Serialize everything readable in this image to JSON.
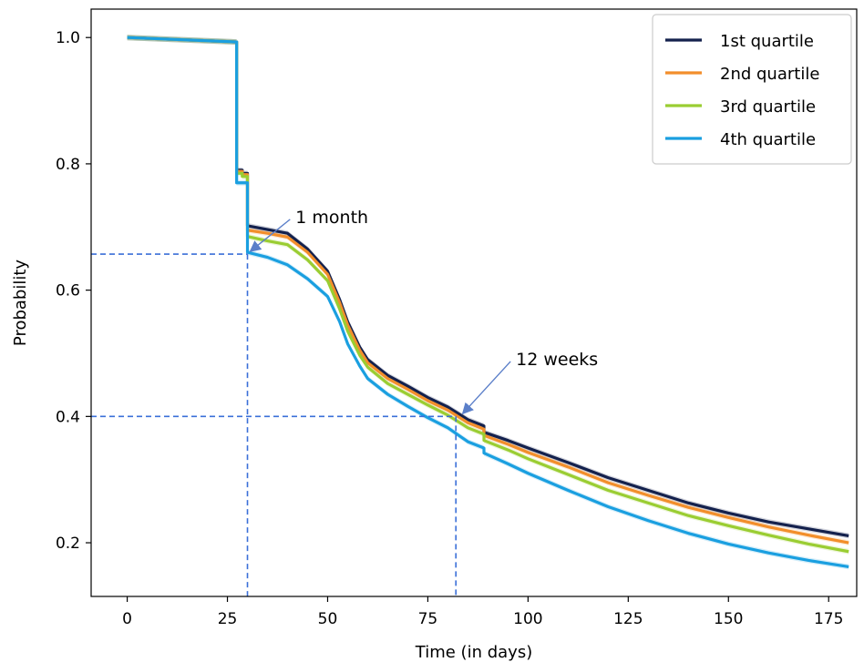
{
  "chart_data": {
    "type": "line",
    "xlabel": "Time (in days)",
    "ylabel": "Probability",
    "xlim": [
      -9,
      182
    ],
    "ylim": [
      0.115,
      1.045
    ],
    "xticks": [
      0,
      25,
      50,
      75,
      100,
      125,
      150,
      175
    ],
    "yticks": [
      0.2,
      0.4,
      0.6,
      0.8,
      1.0
    ],
    "xtick_labels": [
      "0",
      "25",
      "50",
      "75",
      "100",
      "125",
      "150",
      "175"
    ],
    "ytick_labels": [
      "0.2",
      "0.4",
      "0.6",
      "0.8",
      "1.0"
    ],
    "grid": false,
    "legend_position": "top-right",
    "series": [
      {
        "name": "1st quartile",
        "color": "#14214d",
        "x": [
          0,
          27.3,
          27.3,
          28.7,
          28.7,
          30,
          30,
          35,
          40,
          45,
          50,
          53,
          55,
          58,
          60,
          65,
          70,
          75,
          80,
          85,
          89,
          89,
          95,
          100,
          110,
          120,
          130,
          140,
          150,
          160,
          170,
          180
        ],
        "y": [
          1.0,
          0.993,
          0.79,
          0.79,
          0.785,
          0.785,
          0.702,
          0.696,
          0.69,
          0.665,
          0.63,
          0.585,
          0.55,
          0.51,
          0.49,
          0.465,
          0.448,
          0.43,
          0.415,
          0.395,
          0.385,
          0.375,
          0.362,
          0.35,
          0.327,
          0.303,
          0.283,
          0.263,
          0.247,
          0.233,
          0.222,
          0.211
        ]
      },
      {
        "name": "2nd quartile",
        "color": "#f28e2b",
        "x": [
          0,
          27.3,
          27.3,
          28.7,
          28.7,
          30,
          30,
          35,
          40,
          45,
          50,
          53,
          55,
          58,
          60,
          65,
          70,
          75,
          80,
          85,
          89,
          89,
          95,
          100,
          110,
          120,
          130,
          140,
          150,
          160,
          170,
          180
        ],
        "y": [
          1.0,
          0.993,
          0.788,
          0.788,
          0.783,
          0.783,
          0.695,
          0.69,
          0.684,
          0.66,
          0.625,
          0.58,
          0.545,
          0.505,
          0.485,
          0.46,
          0.443,
          0.425,
          0.41,
          0.39,
          0.38,
          0.37,
          0.356,
          0.343,
          0.32,
          0.295,
          0.275,
          0.256,
          0.24,
          0.225,
          0.212,
          0.2
        ]
      },
      {
        "name": "3rd quartile",
        "color": "#9acd32",
        "x": [
          0,
          27.3,
          27.3,
          28.7,
          28.7,
          30,
          30,
          35,
          40,
          45,
          50,
          53,
          55,
          58,
          60,
          65,
          70,
          75,
          80,
          85,
          89,
          89,
          95,
          100,
          110,
          120,
          130,
          140,
          150,
          160,
          170,
          180
        ],
        "y": [
          1.0,
          0.993,
          0.785,
          0.785,
          0.78,
          0.78,
          0.685,
          0.678,
          0.672,
          0.648,
          0.615,
          0.57,
          0.535,
          0.497,
          0.478,
          0.452,
          0.435,
          0.418,
          0.402,
          0.382,
          0.372,
          0.362,
          0.347,
          0.333,
          0.308,
          0.283,
          0.263,
          0.243,
          0.227,
          0.212,
          0.198,
          0.186
        ]
      },
      {
        "name": "4th quartile",
        "color": "#1a9fe0",
        "x": [
          0,
          27.3,
          27.3,
          28.7,
          28.7,
          30,
          30,
          35,
          40,
          45,
          50,
          53,
          55,
          58,
          60,
          65,
          70,
          75,
          80,
          85,
          89,
          89,
          95,
          100,
          110,
          120,
          130,
          140,
          150,
          160,
          170,
          180
        ],
        "y": [
          1.0,
          0.993,
          0.77,
          0.77,
          0.77,
          0.77,
          0.66,
          0.652,
          0.64,
          0.618,
          0.59,
          0.55,
          0.515,
          0.48,
          0.46,
          0.435,
          0.416,
          0.398,
          0.382,
          0.36,
          0.35,
          0.342,
          0.325,
          0.31,
          0.283,
          0.257,
          0.235,
          0.215,
          0.198,
          0.184,
          0.172,
          0.162
        ]
      }
    ],
    "reference_lines": [
      {
        "x": 30,
        "y": 0.657,
        "color": "#3a6fd8"
      },
      {
        "x": 82,
        "y": 0.4,
        "color": "#3a6fd8"
      }
    ],
    "annotations": [
      {
        "text": "1 month",
        "point": [
          30,
          0.657
        ],
        "text_pos": [
          42,
          0.715
        ],
        "arrow_color": "#5b7fc9"
      },
      {
        "text": "12 weeks",
        "point": [
          83,
          0.4
        ],
        "text_pos": [
          97,
          0.49
        ],
        "arrow_color": "#5b7fc9"
      }
    ]
  }
}
